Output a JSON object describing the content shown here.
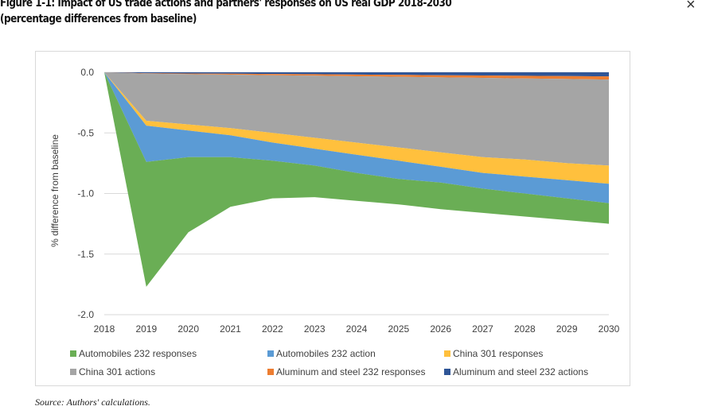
{
  "header": {
    "title_line1": "Figure 1-1: Impact of US trade actions and partners' responses on US real GDP 2018-2030",
    "title_line2": "(percentage differences from baseline)",
    "close_icon": "×"
  },
  "source": "Source: Authors' calculations.",
  "chart_data": {
    "type": "area",
    "stacked": true,
    "title": "Impact of US trade actions and partners' responses on US real GDP 2018-2030 (percentage differences from baseline)",
    "xlabel": "",
    "ylabel": "% difference from baseline",
    "ylim": [
      -2.0,
      0.0
    ],
    "yticks": [
      "0.0",
      "-0.5",
      "-1.0",
      "-1.5",
      "-2.0"
    ],
    "ytick_values": [
      0.0,
      -0.5,
      -1.0,
      -1.5,
      -2.0
    ],
    "x": [
      "2018",
      "2019",
      "2020",
      "2021",
      "2022",
      "2023",
      "2024",
      "2025",
      "2026",
      "2027",
      "2028",
      "2029",
      "2030"
    ],
    "grid": true,
    "legend_position": "bottom",
    "series": [
      {
        "name": "Aluminum and steel 232 actions",
        "color": "#2F5597",
        "values": [
          0,
          -0.008,
          -0.01,
          -0.012,
          -0.014,
          -0.016,
          -0.019,
          -0.021,
          -0.024,
          -0.026,
          -0.029,
          -0.031,
          -0.034
        ]
      },
      {
        "name": "Aluminum and steel 232 responses",
        "color": "#ED7D31",
        "values": [
          0,
          -0.004,
          -0.006,
          -0.008,
          -0.01,
          -0.012,
          -0.014,
          -0.016,
          -0.018,
          -0.02,
          -0.022,
          -0.024,
          -0.026
        ]
      },
      {
        "name": "China 301 actions",
        "color": "#A5A5A5",
        "values": [
          0,
          -0.388,
          -0.414,
          -0.44,
          -0.476,
          -0.512,
          -0.547,
          -0.583,
          -0.618,
          -0.654,
          -0.669,
          -0.695,
          -0.71
        ]
      },
      {
        "name": "China 301 responses",
        "color": "#FFC03D",
        "values": [
          0,
          -0.04,
          -0.05,
          -0.06,
          -0.08,
          -0.09,
          -0.1,
          -0.11,
          -0.12,
          -0.13,
          -0.14,
          -0.14,
          -0.15
        ]
      },
      {
        "name": "Automobiles 232 action",
        "color": "#5B9BD5",
        "values": [
          0,
          -0.3,
          -0.22,
          -0.18,
          -0.15,
          -0.14,
          -0.15,
          -0.15,
          -0.13,
          -0.13,
          -0.14,
          -0.15,
          -0.16
        ]
      },
      {
        "name": "Automobiles 232 responses",
        "color": "#6AAE55",
        "values": [
          0,
          -1.03,
          -0.62,
          -0.41,
          -0.31,
          -0.26,
          -0.23,
          -0.21,
          -0.22,
          -0.2,
          -0.19,
          -0.18,
          -0.17
        ]
      }
    ],
    "legend": [
      {
        "name": "Automobiles 232 responses",
        "color": "#6AAE55"
      },
      {
        "name": "Automobiles 232 action",
        "color": "#5B9BD5"
      },
      {
        "name": "China 301 responses",
        "color": "#FFC03D"
      },
      {
        "name": "China 301 actions",
        "color": "#A5A5A5"
      },
      {
        "name": "Aluminum and steel 232 responses",
        "color": "#ED7D31"
      },
      {
        "name": "Aluminum and steel 232 actions",
        "color": "#2F5597"
      }
    ]
  }
}
